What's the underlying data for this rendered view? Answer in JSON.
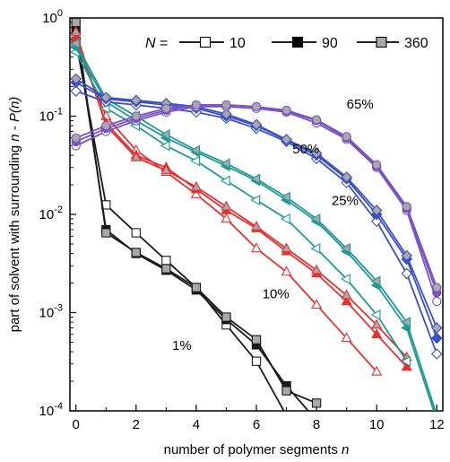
{
  "chart_data": {
    "type": "line",
    "xlabel": "number of polymer segments n",
    "xlabel_main": "number of polymer segments ",
    "xlabel_var": "n",
    "ylabel": "part of solvent with surrounding n - P(n)",
    "ylabel_main": "part of solvent with surrounding ",
    "ylabel_var": "n - P(n)",
    "xlim": [
      -0.2,
      12.2
    ],
    "ylim": [
      0.0001,
      1
    ],
    "yscale": "log",
    "xticks": [
      "0",
      "2",
      "4",
      "6",
      "8",
      "10",
      "12"
    ],
    "yticks": [
      {
        "mantissa": "10",
        "exp": "0",
        "value": 1
      },
      {
        "mantissa": "10",
        "exp": "-1",
        "value": 0.1
      },
      {
        "mantissa": "10",
        "exp": "-2",
        "value": 0.01
      },
      {
        "mantissa": "10",
        "exp": "-3",
        "value": 0.001
      },
      {
        "mantissa": "10",
        "exp": "-4",
        "value": 0.0001
      }
    ],
    "legend": {
      "prefix": "N",
      "eq": " =",
      "entries": [
        {
          "label": "10",
          "marker": "open"
        },
        {
          "label": "90",
          "marker": "filled"
        },
        {
          "label": "360",
          "marker": "gray"
        }
      ]
    },
    "series_labels": [
      {
        "text": "65%",
        "x": 9.0,
        "y": 0.12
      },
      {
        "text": "50%",
        "x": 7.2,
        "y": 0.042
      },
      {
        "text": "25%",
        "x": 8.5,
        "y": 0.0125
      },
      {
        "text": "10%",
        "x": 6.2,
        "y": 0.0014
      },
      {
        "text": "1%",
        "x": 3.2,
        "y": 0.00042
      }
    ],
    "groups": [
      {
        "concentration": "1%",
        "color": "#1a1a1a",
        "marker_shape": "square",
        "series": [
          {
            "N": "10",
            "x": [
              0,
              1,
              2,
              3,
              4,
              5,
              6,
              7,
              8
            ],
            "y": [
              0.58,
              0.0125,
              0.0065,
              0.0034,
              0.0018,
              0.00075,
              0.00032,
              9e-05,
              6e-05
            ]
          },
          {
            "N": "90",
            "x": [
              0,
              1,
              2,
              3,
              4,
              5,
              6,
              7,
              8
            ],
            "y": [
              0.75,
              0.007,
              0.004,
              0.0027,
              0.0017,
              0.00085,
              0.00047,
              0.00018,
              8e-05
            ]
          },
          {
            "N": "360",
            "x": [
              0,
              1,
              2,
              3,
              4,
              5,
              6,
              7,
              8
            ],
            "y": [
              0.9,
              0.0065,
              0.0041,
              0.0028,
              0.0018,
              0.0009,
              0.00053,
              0.00016,
              0.00012
            ]
          }
        ]
      },
      {
        "concentration": "10%",
        "color": "#e8302f",
        "marker_shape": "triangle-up",
        "series": [
          {
            "N": "10",
            "x": [
              0,
              1,
              2,
              3,
              4,
              5,
              6,
              7,
              8,
              9,
              10
            ],
            "y": [
              0.55,
              0.1,
              0.045,
              0.027,
              0.016,
              0.009,
              0.0045,
              0.0026,
              0.0012,
              0.00055,
              0.00025
            ]
          },
          {
            "N": "90",
            "x": [
              0,
              1,
              2,
              3,
              4,
              5,
              6,
              7,
              8,
              9,
              10,
              11
            ],
            "y": [
              0.62,
              0.085,
              0.04,
              0.03,
              0.018,
              0.011,
              0.0072,
              0.0042,
              0.0025,
              0.0013,
              0.0006,
              0.00028
            ]
          },
          {
            "N": "360",
            "x": [
              0,
              1,
              2,
              3,
              4,
              5,
              6,
              7,
              8,
              9,
              10,
              11
            ],
            "y": [
              0.72,
              0.08,
              0.038,
              0.028,
              0.019,
              0.012,
              0.0075,
              0.0045,
              0.0027,
              0.0015,
              0.00075,
              0.00035
            ]
          }
        ]
      },
      {
        "concentration": "25%",
        "color": "#1f9a96",
        "marker_shape": "triangle-left",
        "series": [
          {
            "N": "10",
            "x": [
              0,
              1,
              2,
              3,
              4,
              5,
              6,
              7,
              8,
              9,
              10,
              11
            ],
            "y": [
              0.45,
              0.12,
              0.08,
              0.05,
              0.035,
              0.022,
              0.014,
              0.009,
              0.0045,
              0.0022,
              0.00095,
              0.00032
            ]
          },
          {
            "N": "90",
            "x": [
              0,
              1,
              2,
              3,
              4,
              5,
              6,
              7,
              8,
              9,
              10,
              11,
              12
            ],
            "y": [
              0.5,
              0.14,
              0.09,
              0.06,
              0.043,
              0.031,
              0.022,
              0.014,
              0.0085,
              0.0042,
              0.0019,
              0.0007,
              8e-05
            ]
          },
          {
            "N": "360",
            "x": [
              0,
              1,
              2,
              3,
              4,
              5,
              6,
              7,
              8,
              9,
              10,
              11,
              12
            ],
            "y": [
              0.55,
              0.15,
              0.1,
              0.065,
              0.045,
              0.033,
              0.023,
              0.015,
              0.009,
              0.0045,
              0.0021,
              0.0008,
              9e-05
            ]
          }
        ]
      },
      {
        "concentration": "50%",
        "color": "#3b4fc4",
        "marker_shape": "diamond",
        "series": [
          {
            "N": "10",
            "x": [
              0,
              1,
              2,
              3,
              4,
              5,
              6,
              7,
              8,
              9,
              10,
              11,
              12
            ],
            "y": [
              0.18,
              0.14,
              0.13,
              0.12,
              0.11,
              0.095,
              0.075,
              0.055,
              0.037,
              0.021,
              0.0085,
              0.0025,
              0.00038
            ]
          },
          {
            "N": "90",
            "x": [
              0,
              1,
              2,
              3,
              4,
              5,
              6,
              7,
              8,
              9,
              10,
              11,
              12
            ],
            "y": [
              0.22,
              0.15,
              0.14,
              0.13,
              0.12,
              0.1,
              0.08,
              0.057,
              0.04,
              0.023,
              0.01,
              0.0035,
              0.00055
            ]
          },
          {
            "N": "360",
            "x": [
              0,
              1,
              2,
              3,
              4,
              5,
              6,
              7,
              8,
              9,
              10,
              11,
              12
            ],
            "y": [
              0.24,
              0.155,
              0.145,
              0.135,
              0.125,
              0.105,
              0.082,
              0.058,
              0.042,
              0.024,
              0.011,
              0.0038,
              0.0007
            ]
          }
        ]
      },
      {
        "concentration": "65%",
        "color": "#7b52c2",
        "marker_shape": "circle",
        "series": [
          {
            "N": "10",
            "x": [
              0,
              1,
              2,
              3,
              4,
              5,
              6,
              7,
              8,
              9,
              10,
              11,
              12
            ],
            "y": [
              0.05,
              0.07,
              0.09,
              0.11,
              0.125,
              0.125,
              0.12,
              0.11,
              0.085,
              0.058,
              0.03,
              0.011,
              0.0013
            ]
          },
          {
            "N": "90",
            "x": [
              0,
              1,
              2,
              3,
              4,
              5,
              6,
              7,
              8,
              9,
              10,
              11,
              12
            ],
            "y": [
              0.055,
              0.075,
              0.095,
              0.115,
              0.13,
              0.13,
              0.125,
              0.113,
              0.09,
              0.06,
              0.031,
              0.0115,
              0.0016
            ]
          },
          {
            "N": "360",
            "x": [
              0,
              1,
              2,
              3,
              4,
              5,
              6,
              7,
              8,
              9,
              10,
              11,
              12
            ],
            "y": [
              0.06,
              0.08,
              0.1,
              0.12,
              0.13,
              0.13,
              0.125,
              0.115,
              0.092,
              0.062,
              0.032,
              0.012,
              0.0018
            ]
          }
        ]
      }
    ]
  }
}
